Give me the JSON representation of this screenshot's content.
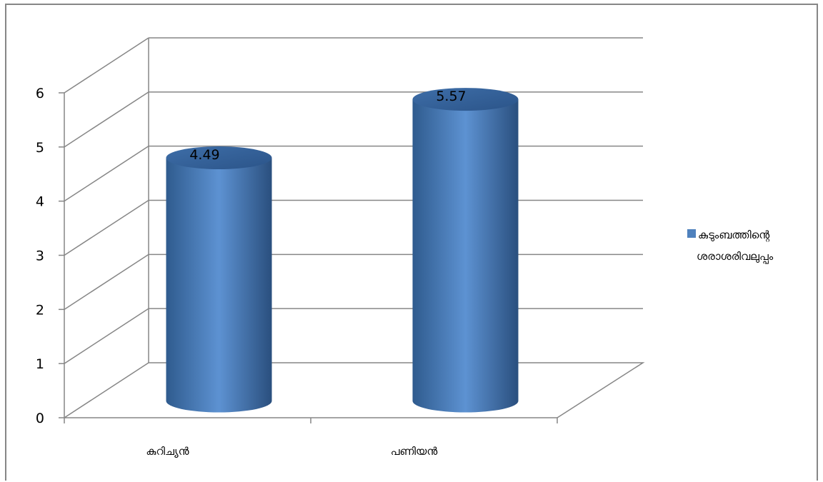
{
  "chart_data": {
    "type": "bar",
    "subtype": "3d-cylinder",
    "categories": [
      "കുറിച്യൻ",
      "പണിയൻ"
    ],
    "series": [
      {
        "name": "കുടുംബത്തിന്റെ ശരാശരിവലുപ്പം",
        "values": [
          4.49,
          5.57
        ]
      }
    ],
    "data_labels": [
      "4.49",
      "5.57"
    ],
    "legend_lines": [
      "കുടുംബത്തിന്റെ",
      "ശരാശരിവലുപ്പം"
    ],
    "y_ticks": [
      "0",
      "1",
      "2",
      "3",
      "4",
      "5",
      "6"
    ],
    "ylim": [
      0,
      6
    ],
    "grid": true,
    "legend_position": "right",
    "colors": {
      "bar_main": "#4f81bd",
      "bar_dark": "#2c4d75",
      "bar_light": "#6a9ad4",
      "grid": "#868686"
    }
  }
}
